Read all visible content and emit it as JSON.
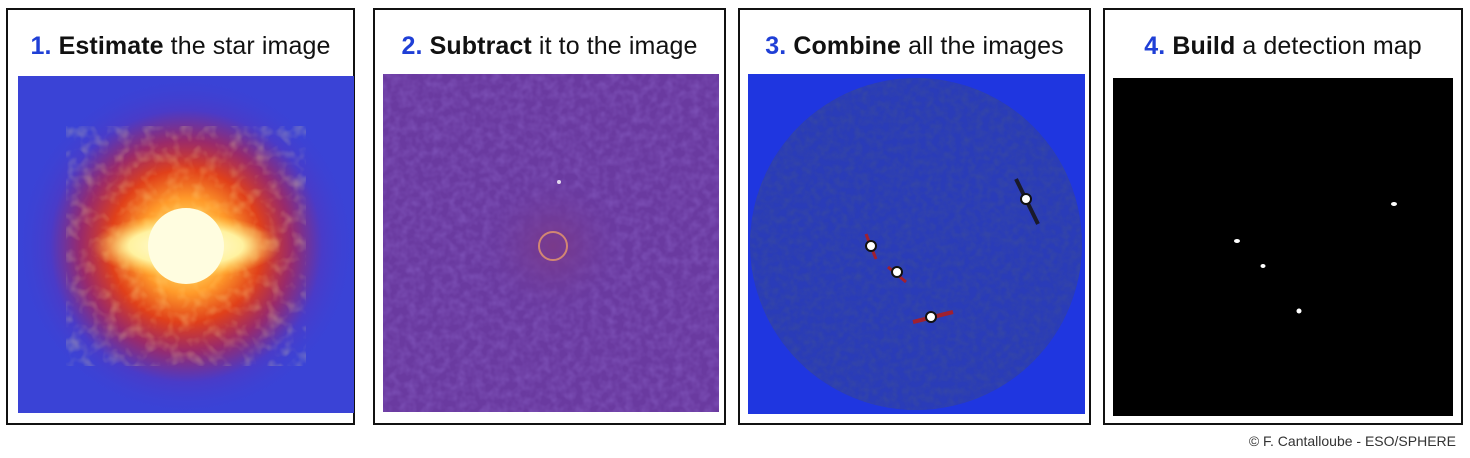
{
  "steps": [
    {
      "number": "1.",
      "verb": "Estimate",
      "rest": " the star image",
      "image": "star-halo-image"
    },
    {
      "number": "2.",
      "verb": "Subtract",
      "rest": " it to the image",
      "image": "residual-image"
    },
    {
      "number": "3.",
      "verb": "Combine",
      "rest": " all the images",
      "image": "combined-image"
    },
    {
      "number": "4.",
      "verb": "Build",
      "rest": " a detection map",
      "image": "detection-map-image"
    }
  ],
  "colors": {
    "step_number": "#1f3fd6",
    "halo_background": "#3a43d6",
    "residual_background": "#6a3aa0",
    "combined_background": "#1f36e0",
    "detection_background": "#000000"
  },
  "credit": "© F. Cantalloube - ESO/SPHERE"
}
